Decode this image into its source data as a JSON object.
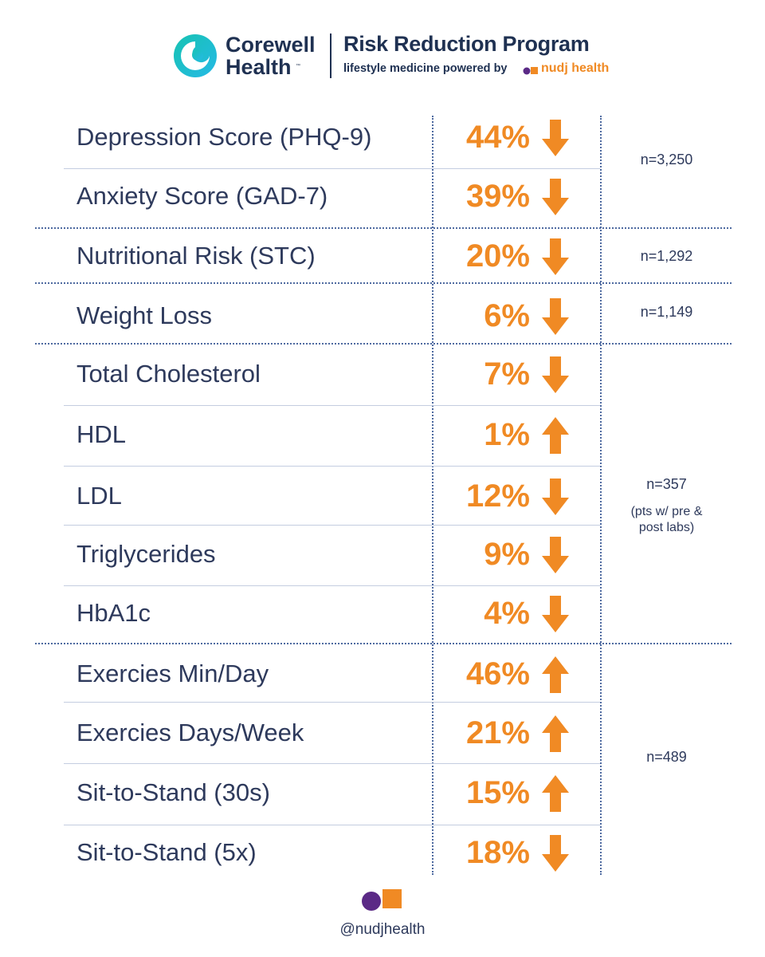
{
  "header": {
    "brand_line1": "Corewell",
    "brand_line2": "Health",
    "trademark": "™",
    "program_title": "Risk Reduction Program",
    "program_sub": "lifestyle medicine powered by",
    "nudj_word": "nudj health"
  },
  "colors": {
    "accent_orange": "#f08a24",
    "navy": "#1f3152",
    "text": "#2e3a5c",
    "logo_teal": "#17c3b2",
    "logo_cyan": "#25b9e6",
    "nudj_purple": "#5b2a86"
  },
  "rows": [
    {
      "label": "Depression Score (PHQ-9)",
      "value": "44%",
      "direction": "down"
    },
    {
      "label": "Anxiety Score (GAD-7)",
      "value": "39%",
      "direction": "down"
    },
    {
      "label": "Nutritional Risk (STC)",
      "value": "20%",
      "direction": "down"
    },
    {
      "label": "Weight Loss",
      "value": "6%",
      "direction": "down"
    },
    {
      "label": "Total Cholesterol",
      "value": "7%",
      "direction": "down"
    },
    {
      "label": "HDL",
      "value": "1%",
      "direction": "up"
    },
    {
      "label": "LDL",
      "value": "12%",
      "direction": "down"
    },
    {
      "label": "Triglycerides",
      "value": "9%",
      "direction": "down"
    },
    {
      "label": "HbA1c",
      "value": "4%",
      "direction": "down"
    },
    {
      "label": "Exercies Min/Day",
      "value": "46%",
      "direction": "up"
    },
    {
      "label": "Exercies Days/Week",
      "value": "21%",
      "direction": "up"
    },
    {
      "label": "Sit-to-Stand (30s)",
      "value": "15%",
      "direction": "up"
    },
    {
      "label": "Sit-to-Stand (5x)",
      "value": "18%",
      "direction": "down"
    }
  ],
  "groups": [
    {
      "n": "n=3,250"
    },
    {
      "n": "n=1,292"
    },
    {
      "n": "n=1,149"
    },
    {
      "n": "n=357",
      "note_line1": "(pts w/ pre &",
      "note_line2": "post labs)"
    },
    {
      "n": "n=489"
    }
  ],
  "footer": {
    "handle": "@nudjhealth"
  },
  "icons": [
    "corewell-logo-icon",
    "nudj-logo-icon",
    "arrow-down-icon",
    "arrow-up-icon"
  ]
}
